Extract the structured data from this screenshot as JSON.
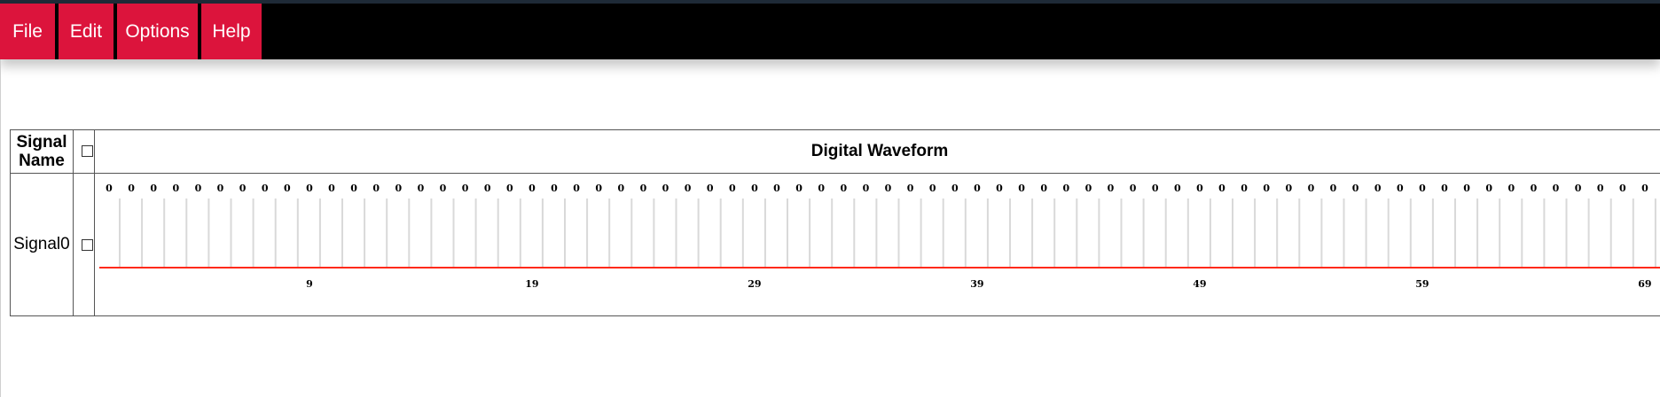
{
  "menu": {
    "items": [
      "File",
      "Edit",
      "Options",
      "Help"
    ],
    "accent_color": "#dc143c",
    "bar_color": "#000000"
  },
  "table": {
    "header_signal_name": "Signal Name",
    "header_waveform": "Digital Waveform",
    "header_select_all_checked": false,
    "rows": [
      {
        "name": "Signal0",
        "checked": false
      }
    ]
  },
  "waveform": {
    "line_color": "#ff2a1a",
    "bit_values": [
      0,
      0,
      0,
      0,
      0,
      0,
      0,
      0,
      0,
      0,
      0,
      0,
      0,
      0,
      0,
      0,
      0,
      0,
      0,
      0,
      0,
      0,
      0,
      0,
      0,
      0,
      0,
      0,
      0,
      0,
      0,
      0,
      0,
      0,
      0,
      0,
      0,
      0,
      0,
      0,
      0,
      0,
      0,
      0,
      0,
      0,
      0,
      0,
      0,
      0,
      0,
      0,
      0,
      0,
      0,
      0,
      0,
      0,
      0,
      0,
      0,
      0,
      0,
      0,
      0,
      0,
      0,
      0,
      0,
      0
    ],
    "time_labels": [
      "9",
      "19",
      "29",
      "39",
      "49",
      "59",
      "69"
    ]
  }
}
